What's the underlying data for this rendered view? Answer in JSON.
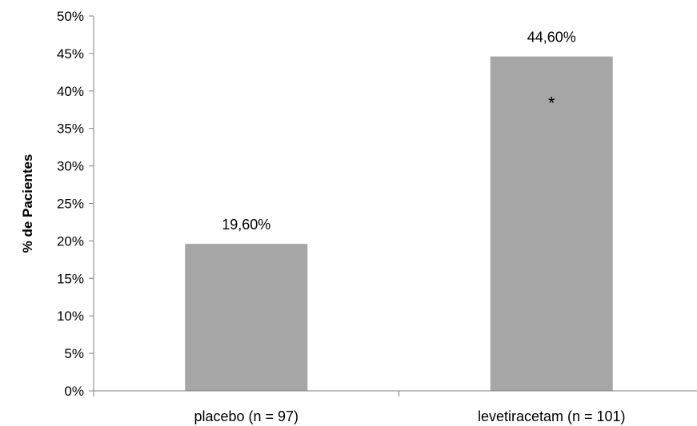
{
  "chart_data": {
    "type": "bar",
    "title": "",
    "ylabel": "% de Pacientes",
    "xlabel": "",
    "categories": [
      "placebo (n = 97)",
      "levetiracetam (n = 101)"
    ],
    "values": [
      19.6,
      44.6
    ],
    "data_labels": [
      "19,60%",
      "44,60%"
    ],
    "ylim": [
      0,
      50
    ],
    "yticks": [
      0,
      5,
      10,
      15,
      20,
      25,
      30,
      35,
      40,
      45,
      50
    ],
    "ytick_labels": [
      "0%",
      "5%",
      "10%",
      "15%",
      "20%",
      "25%",
      "30%",
      "35%",
      "40%",
      "45%",
      "50%"
    ],
    "annotations": [
      {
        "category_index": 1,
        "text": "*"
      }
    ],
    "grid": false,
    "legend": "none",
    "colors": {
      "bar": "#a6a6a6",
      "axis": "#7f7f7f"
    }
  }
}
